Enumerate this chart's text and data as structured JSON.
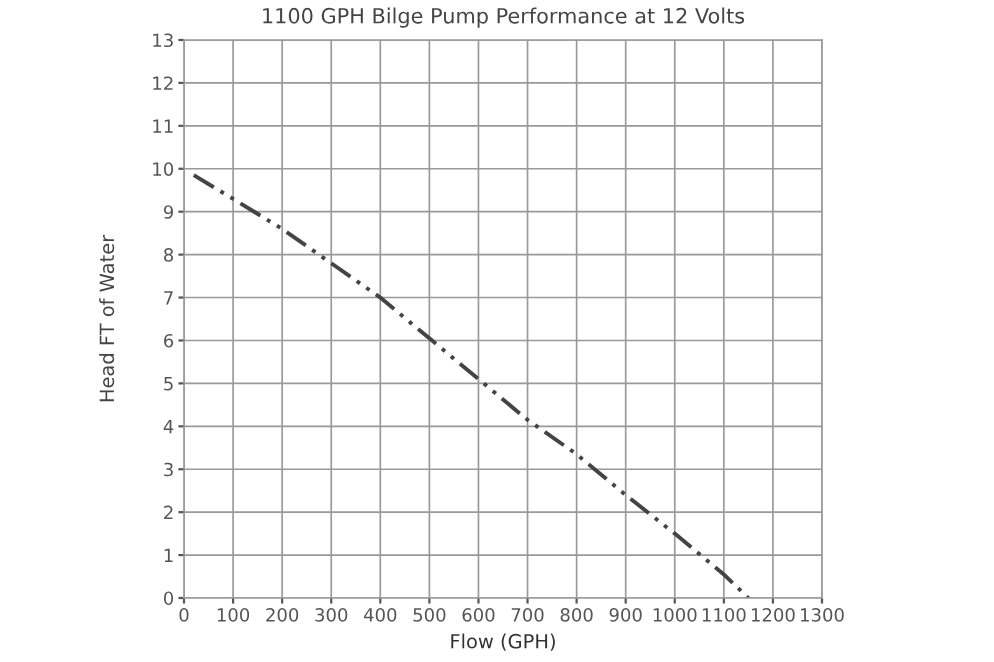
{
  "chart_data": {
    "type": "line",
    "title": "1100 GPH Bilge Pump Performance at 12 Volts",
    "xlabel": "Flow (GPH)",
    "ylabel": "Head FT of Water",
    "x": [
      20,
      100,
      200,
      300,
      400,
      500,
      600,
      700,
      800,
      900,
      1000,
      1100,
      1150
    ],
    "series": [
      {
        "color": "#444444",
        "values": [
          9.85,
          9.3,
          8.6,
          7.8,
          7.0,
          6.05,
          5.1,
          4.15,
          3.35,
          2.4,
          1.5,
          0.55,
          0
        ]
      }
    ],
    "xlim": [
      0,
      1300
    ],
    "ylim": [
      0,
      13
    ],
    "xticks": [
      0,
      100,
      200,
      300,
      400,
      500,
      600,
      700,
      800,
      900,
      1000,
      1100,
      1200,
      1300
    ],
    "yticks": [
      0,
      1,
      2,
      3,
      4,
      5,
      6,
      7,
      8,
      9,
      10,
      11,
      12,
      13
    ],
    "grid": true,
    "line_style": "dashdotdot",
    "marker": "none",
    "legend": false
  }
}
